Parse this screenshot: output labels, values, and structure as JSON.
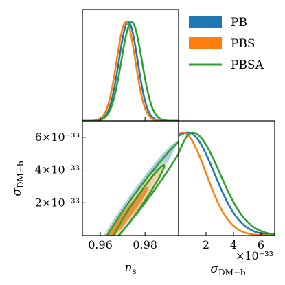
{
  "chart_data": {
    "type": "triangle-corner-plot",
    "series": [
      {
        "name": "PB",
        "color": "#1f77b4",
        "style": "filled"
      },
      {
        "name": "PBS",
        "color": "#ff7f0e",
        "style": "filled"
      },
      {
        "name": "PBSA",
        "color": "#2ca02c",
        "style": "line"
      }
    ],
    "parameters": [
      {
        "key": "ns",
        "label_main": "n",
        "label_sub": "s",
        "range": [
          0.952,
          0.995
        ],
        "ticks": [
          0.96,
          0.98
        ],
        "tick_labels": [
          "0.96",
          "0.98"
        ]
      },
      {
        "key": "sigma",
        "label_main": "σ",
        "label_sub": "DM−b",
        "range": [
          0,
          7e-33
        ],
        "ticks": [
          2e-33,
          4e-33,
          6e-33
        ],
        "tick_labels": [
          "2",
          "4",
          "6"
        ],
        "offset_text": "×10⁻³³",
        "y_tick_labels": [
          "2×10⁻³³",
          "4×10⁻³³",
          "6×10⁻³³"
        ]
      }
    ],
    "marginals": {
      "ns": {
        "PB": {
          "mean": 0.9725,
          "sigma": 0.0042
        },
        "PBS": {
          "mean": 0.9715,
          "sigma": 0.0042
        },
        "PBSA": {
          "mean": 0.974,
          "sigma": 0.0046
        }
      },
      "sigma": {
        "PB": {
          "peak": 7e-34,
          "width": 1.9e-33,
          "start_level": 0.97
        },
        "PBS": {
          "peak": 3e-34,
          "width": 1.7e-33,
          "start_level": 0.99
        },
        "PBSA": {
          "peak": 1e-33,
          "width": 2e-33,
          "start_level": 0.8
        }
      }
    },
    "contours_2d": {
      "PB": [
        {
          "level": "95%",
          "center": [
            0.9765,
            2.4e-33
          ],
          "major": [
            0.0175,
            3.3e-33
          ],
          "minor": 0.0028,
          "fill": "#a9c9e4"
        },
        {
          "level": "68%",
          "center": [
            0.9745,
            1.9e-33
          ],
          "major": [
            0.011,
            2.2e-33
          ],
          "minor": 0.0018,
          "fill": "#4f94c9"
        }
      ],
      "PBS": [
        {
          "level": "95%",
          "center": [
            0.974,
            1.7e-33
          ],
          "major": [
            0.0155,
            2.8e-33
          ],
          "minor": 0.0027,
          "fill": "#f9cfa3"
        },
        {
          "level": "68%",
          "center": [
            0.972,
            1.3e-33
          ],
          "major": [
            0.0095,
            1.7e-33
          ],
          "minor": 0.0018,
          "fill": "#f08a31"
        }
      ],
      "PBSA": [
        {
          "level": "95%",
          "center": [
            0.979,
            2.5e-33
          ],
          "major": [
            0.0185,
            3.4e-33
          ],
          "minor": 0.003
        },
        {
          "level": "68%",
          "center": [
            0.977,
            2e-33
          ],
          "major": [
            0.0115,
            2.3e-33
          ],
          "minor": 0.0019
        }
      ]
    },
    "legend_position": "top-right"
  }
}
